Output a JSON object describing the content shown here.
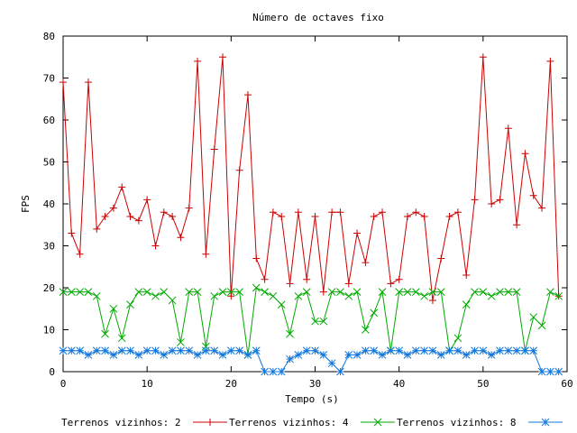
{
  "chart_data": {
    "type": "line",
    "title": "Número de octaves fixo",
    "xlabel": "Tempo (s)",
    "ylabel": "FPS",
    "xlim": [
      0,
      60
    ],
    "ylim": [
      0,
      80
    ],
    "xticks": [
      "0",
      "10",
      "20",
      "30",
      "40",
      "50",
      "60"
    ],
    "yticks": [
      "0",
      "10",
      "20",
      "30",
      "40",
      "50",
      "60",
      "70",
      "80"
    ],
    "grid": false,
    "legend_position": "bottom",
    "x": [
      0,
      1,
      2,
      3,
      4,
      5,
      6,
      7,
      8,
      9,
      10,
      11,
      12,
      13,
      14,
      15,
      16,
      17,
      18,
      19,
      20,
      21,
      22,
      23,
      24,
      25,
      26,
      27,
      28,
      29,
      30,
      31,
      32,
      33,
      34,
      35,
      36,
      37,
      38,
      39,
      40,
      41,
      42,
      43,
      44,
      45,
      46,
      47,
      48,
      49,
      50,
      51,
      52,
      53,
      54,
      55,
      56,
      57,
      58,
      59
    ],
    "series": [
      {
        "name": "Terrenos vizinhos: 2",
        "color": "#cc0000",
        "marker": "plus",
        "values": [
          69,
          33,
          28,
          69,
          34,
          37,
          39,
          44,
          37,
          36,
          41,
          30,
          38,
          37,
          32,
          39,
          74,
          28,
          53,
          75,
          18,
          48,
          66,
          27,
          22,
          38,
          37,
          21,
          38,
          22,
          37,
          19,
          38,
          38,
          21,
          33,
          26,
          37,
          38,
          21,
          22,
          37,
          38,
          37,
          17,
          27,
          37,
          38,
          23,
          41,
          75,
          40,
          41,
          58,
          35,
          52,
          42,
          39,
          74,
          18
        ]
      },
      {
        "name": "Terrenos vizinhos: 4",
        "color": "#00aa00",
        "marker": "x",
        "values": [
          19,
          19,
          19,
          19,
          18,
          9,
          15,
          8,
          16,
          19,
          19,
          18,
          19,
          17,
          7,
          19,
          19,
          6,
          18,
          19,
          19,
          19,
          4,
          20,
          19,
          18,
          16,
          9,
          18,
          19,
          12,
          12,
          19,
          19,
          18,
          19,
          10,
          14,
          19,
          5,
          19,
          19,
          19,
          18,
          19,
          19,
          5,
          8,
          16,
          19,
          19,
          18,
          19,
          19,
          19,
          5,
          13,
          11,
          19,
          18
        ]
      },
      {
        "name": "Terrenos vizinhos: 8",
        "color": "#1177dd",
        "marker": "star",
        "values": [
          5,
          5,
          5,
          4,
          5,
          5,
          4,
          5,
          5,
          4,
          5,
          5,
          4,
          5,
          5,
          5,
          4,
          5,
          5,
          4,
          5,
          5,
          4,
          5,
          0,
          0,
          0,
          3,
          4,
          5,
          5,
          4,
          2,
          0,
          4,
          4,
          5,
          5,
          4,
          5,
          5,
          4,
          5,
          5,
          5,
          4,
          5,
          5,
          4,
          5,
          5,
          4,
          5,
          5,
          5,
          5,
          5,
          0,
          0,
          0
        ]
      }
    ]
  }
}
